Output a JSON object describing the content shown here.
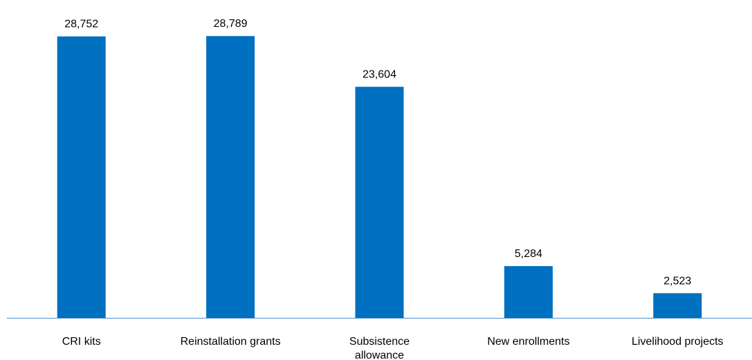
{
  "chart_data": {
    "type": "bar",
    "title": "",
    "xlabel": "",
    "ylabel": "",
    "categories": [
      [
        "CRI kits"
      ],
      [
        "Reinstallation grants"
      ],
      [
        "Subsistence",
        "allowance"
      ],
      [
        "New enrollments"
      ],
      [
        "Livelihood projects"
      ]
    ],
    "values": [
      28752,
      28789,
      23604,
      5284,
      2523
    ],
    "value_labels": [
      "28,752",
      "28,789",
      "23,604",
      "5,284",
      "2,523"
    ],
    "ylim": [
      0,
      30000
    ],
    "grid": false,
    "legend": "none",
    "colors": {
      "bar": "#0070C0",
      "axis": "#4A90C8"
    }
  }
}
